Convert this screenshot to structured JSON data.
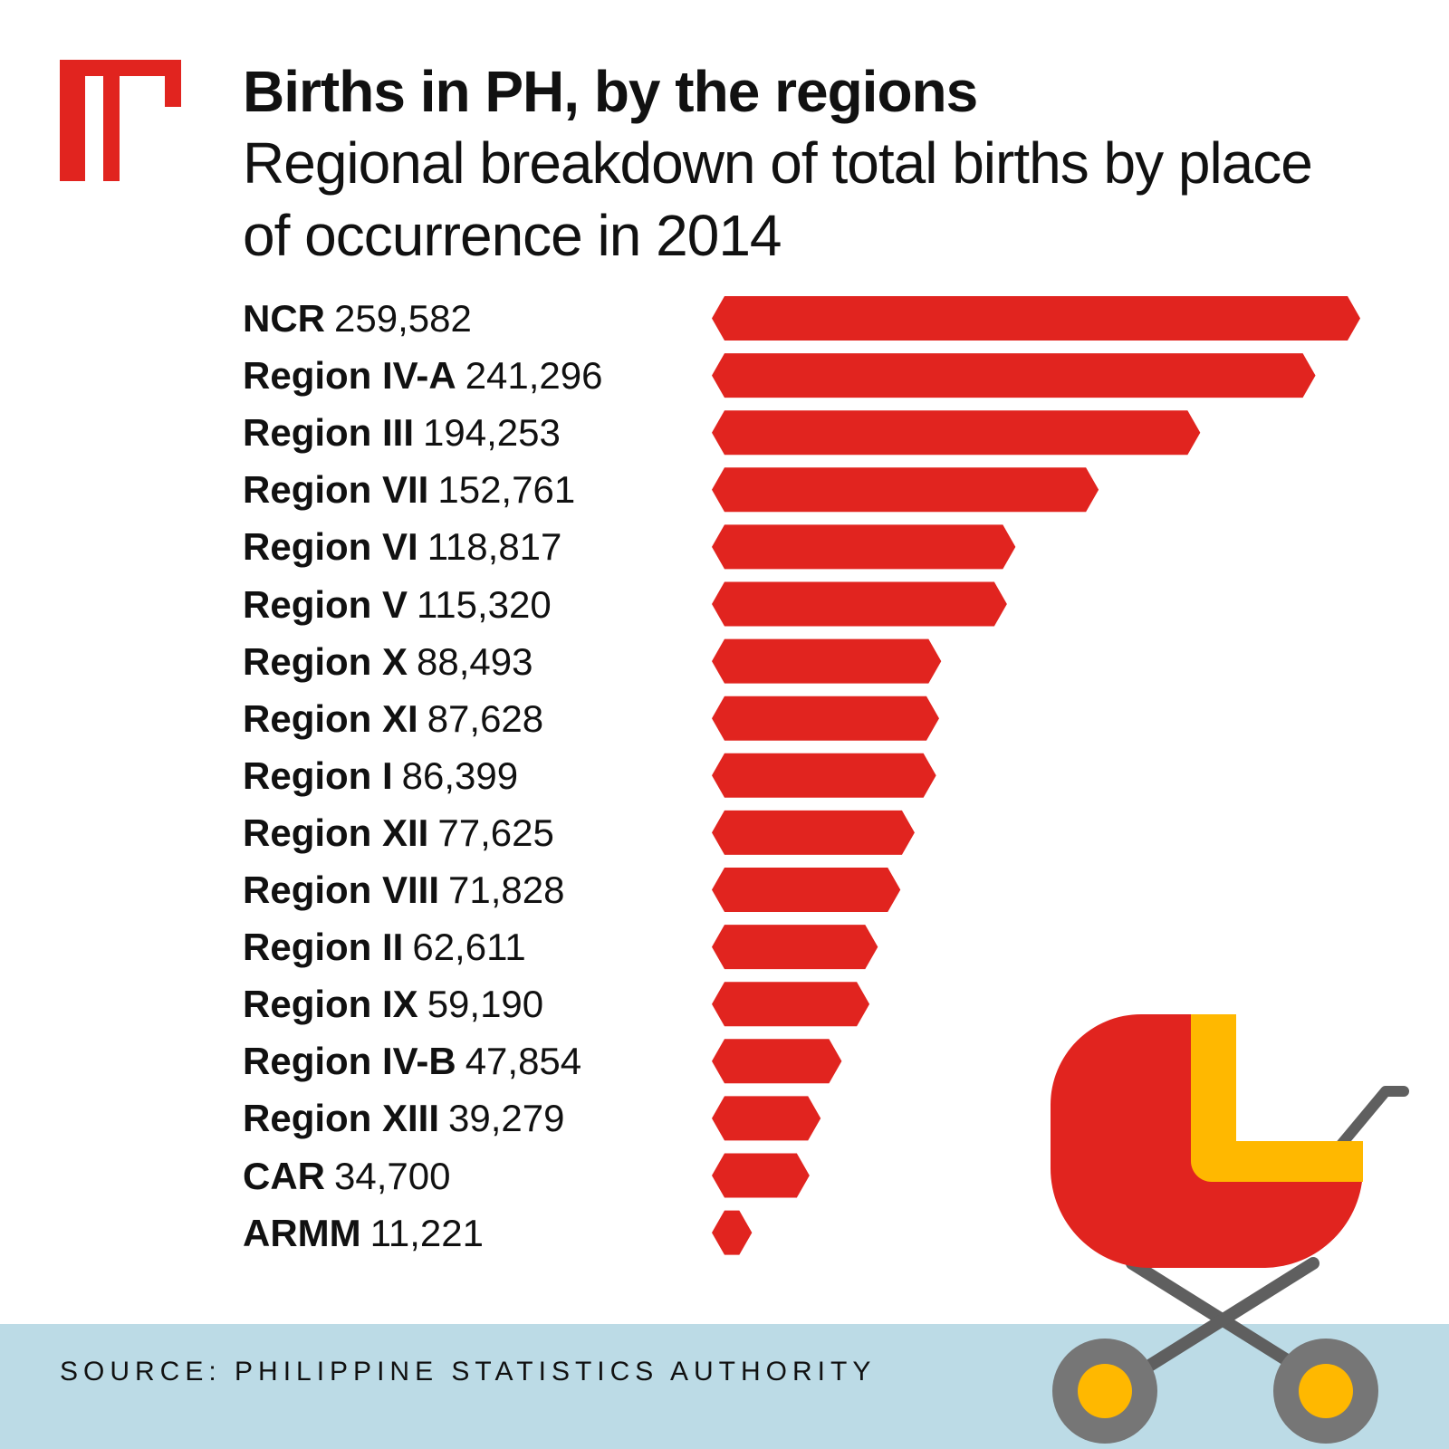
{
  "header": {
    "title": "Births in PH, by the regions",
    "subtitle": "Regional breakdown of total births by place of occurrence in 2014"
  },
  "footer": {
    "source": "SOURCE: PHILIPPINE STATISTICS AUTHORITY"
  },
  "colors": {
    "bar": "#e1241f",
    "logo": "#e1241f",
    "footer_band": "#bcdbe6",
    "stroller_body": "#e1241f",
    "stroller_hood": "#ffb800",
    "stroller_frame": "#5f5f5f"
  },
  "icons": [
    "brand-logo",
    "baby-stroller-icon"
  ],
  "chart_data": {
    "type": "bar",
    "orientation": "horizontal",
    "title": "Births in PH, by the regions",
    "subtitle": "Regional breakdown of total births by place of occurrence in 2014",
    "xlabel": "",
    "ylabel": "",
    "xlim": [
      0,
      259582
    ],
    "grid": false,
    "legend": "none",
    "categories": [
      "NCR",
      "Region IV-A",
      "Region III",
      "Region VII",
      "Region VI",
      "Region V",
      "Region X",
      "Region XI",
      "Region I",
      "Region XII",
      "Region VIII",
      "Region II",
      "Region IX",
      "Region IV-B",
      "Region XIII",
      "CAR",
      "ARMM"
    ],
    "values": [
      259582,
      241296,
      194253,
      152761,
      118817,
      115320,
      88493,
      87628,
      86399,
      77625,
      71828,
      62611,
      59190,
      47854,
      39279,
      34700,
      11221
    ],
    "value_labels": [
      "259,582",
      "241,296",
      "194,253",
      "152,761",
      "118,817",
      "115,320",
      "88,493",
      "87,628",
      "86,399",
      "77,625",
      "71,828",
      "62,611",
      "59,190",
      "47,854",
      "39,279",
      "34,700",
      "11,221"
    ]
  }
}
